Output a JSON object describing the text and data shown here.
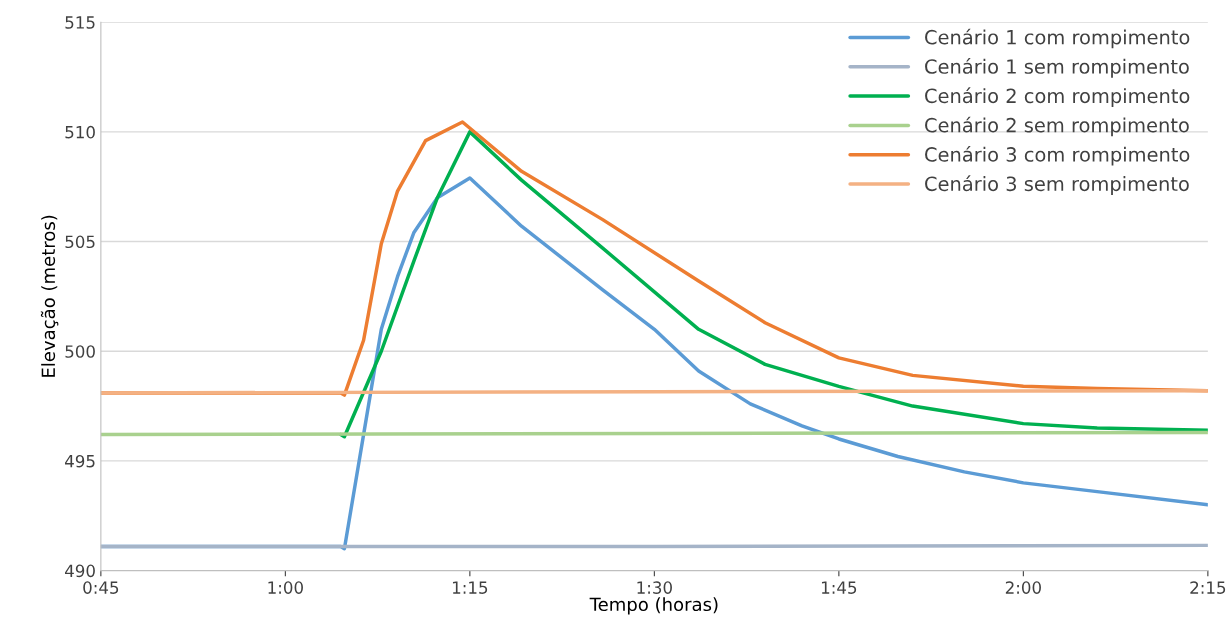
{
  "chart_data": {
    "type": "line",
    "xlabel": "Tempo (horas)",
    "ylabel": "Elevação (metros)",
    "xlim": [
      0.75,
      2.25
    ],
    "xticks": [
      {
        "value": 0.75,
        "label": "0:45"
      },
      {
        "value": 1.0,
        "label": "1:00"
      },
      {
        "value": 1.25,
        "label": "1:15"
      },
      {
        "value": 1.5,
        "label": "1:30"
      },
      {
        "value": 1.75,
        "label": "1:45"
      },
      {
        "value": 2.0,
        "label": "2:00"
      },
      {
        "value": 2.25,
        "label": "2:15"
      }
    ],
    "ylim": [
      490,
      515
    ],
    "yticks": [
      490,
      495,
      500,
      505,
      510,
      515
    ],
    "grid": "y",
    "legend": "top right",
    "marker": "none",
    "line_style": "solid",
    "series": [
      {
        "name": "Cenário 1 com rompimento",
        "color": "#5b9bd5",
        "x": [
          0.75,
          1.075,
          1.08,
          1.106,
          1.13,
          1.152,
          1.174,
          1.206,
          1.25,
          1.32,
          1.43,
          1.5,
          1.56,
          1.63,
          1.7,
          1.75,
          1.83,
          1.92,
          2.0,
          2.1,
          2.25
        ],
        "values": [
          491.1,
          491.1,
          491.0,
          496.2,
          501.0,
          503.4,
          505.4,
          507.0,
          507.9,
          505.7,
          502.8,
          501.0,
          499.1,
          497.6,
          496.6,
          496.0,
          495.2,
          494.5,
          494.0,
          493.6,
          493.0
        ]
      },
      {
        "name": "Cenário 1 sem rompimento",
        "color": "#a5b4c8",
        "x": [
          0.75,
          1.5,
          2.25
        ],
        "values": [
          491.1,
          491.1,
          491.15
        ]
      },
      {
        "name": "Cenário 2 com rompimento",
        "color": "#00b050",
        "x": [
          1.075,
          1.08,
          1.13,
          1.174,
          1.206,
          1.25,
          1.32,
          1.43,
          1.56,
          1.65,
          1.75,
          1.85,
          2.0,
          2.1,
          2.25
        ],
        "values": [
          496.2,
          496.1,
          500.0,
          504.1,
          507.0,
          510.0,
          507.8,
          504.7,
          501.0,
          499.4,
          498.4,
          497.5,
          496.7,
          496.5,
          496.4
        ]
      },
      {
        "name": "Cenário 2 sem rompimento",
        "color": "#a9d18e",
        "x": [
          0.75,
          1.5,
          2.25
        ],
        "values": [
          496.2,
          496.25,
          496.3
        ]
      },
      {
        "name": "Cenário 3 com rompimento",
        "color": "#ed7d31",
        "x": [
          0.75,
          1.075,
          1.08,
          1.106,
          1.13,
          1.152,
          1.19,
          1.24,
          1.32,
          1.43,
          1.56,
          1.65,
          1.75,
          1.85,
          2.0,
          2.1,
          2.25
        ],
        "values": [
          498.1,
          498.1,
          498.0,
          500.5,
          504.9,
          507.3,
          509.6,
          510.45,
          508.2,
          506.0,
          503.2,
          501.3,
          499.7,
          498.9,
          498.4,
          498.3,
          498.2
        ]
      },
      {
        "name": "Cenário 3 sem rompimento",
        "color": "#f4b183",
        "x": [
          0.75,
          1.5,
          2.25
        ],
        "values": [
          498.1,
          498.15,
          498.2
        ]
      }
    ]
  }
}
